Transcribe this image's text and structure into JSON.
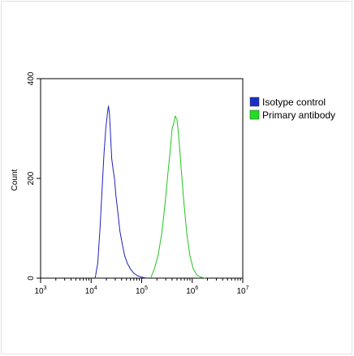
{
  "chart_data": {
    "type": "line",
    "title": "",
    "xlabel": "",
    "ylabel": "Count",
    "x_scale": "log",
    "xlim": [
      1000,
      10000000
    ],
    "ylim": [
      0,
      400
    ],
    "x_ticks": [
      {
        "label": "10",
        "exp": "3",
        "value": 1000
      },
      {
        "label": "10",
        "exp": "4",
        "value": 10000
      },
      {
        "label": "10",
        "exp": "5",
        "value": 100000
      },
      {
        "label": "10",
        "exp": "6",
        "value": 1000000
      },
      {
        "label": "10",
        "exp": "7",
        "value": 10000000
      }
    ],
    "y_ticks": [
      {
        "label": "0",
        "value": 0
      },
      {
        "label": "200",
        "value": 200
      },
      {
        "label": "400",
        "value": 400
      }
    ],
    "grid": false,
    "legend_position": "right",
    "series": [
      {
        "name": "Isotype control",
        "color": "#1f22b8",
        "legend_color": "#1a2fc8",
        "x": [
          12000,
          13500,
          15000,
          16500,
          18000,
          19500,
          21000,
          22000,
          23000,
          24000,
          25500,
          27000,
          29000,
          31000,
          34000,
          37000,
          41000,
          46000,
          52000,
          60000,
          70000,
          82000,
          100000,
          125000
        ],
        "y": [
          0,
          30,
          100,
          180,
          250,
          300,
          330,
          345,
          330,
          295,
          240,
          220,
          200,
          165,
          130,
          95,
          70,
          45,
          30,
          18,
          10,
          5,
          2,
          0
        ]
      },
      {
        "name": "Primary antibody",
        "color": "#22c41f",
        "legend_color": "#22dd22",
        "x": [
          150000,
          180000,
          210000,
          250000,
          290000,
          330000,
          370000,
          400000,
          430000,
          460000,
          500000,
          540000,
          600000,
          680000,
          780000,
          900000,
          1050000,
          1250000,
          1500000,
          1800000
        ],
        "y": [
          0,
          20,
          45,
          90,
          150,
          210,
          260,
          300,
          310,
          325,
          318,
          285,
          225,
          155,
          90,
          45,
          18,
          6,
          2,
          0
        ]
      }
    ]
  }
}
